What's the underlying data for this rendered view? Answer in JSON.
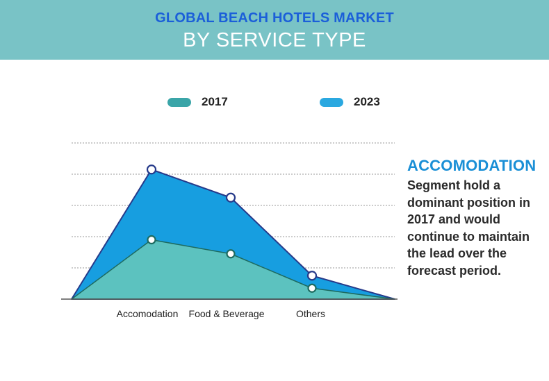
{
  "header": {
    "title": "GLOBAL BEACH HOTELS MARKET",
    "subtitle": "BY SERVICE TYPE"
  },
  "colors": {
    "banner": "#79c3c6",
    "title": "#1b5fd9",
    "series_2017_fill": "#5cc2bf",
    "series_2017_swatch": "#3aa5a8",
    "series_2023_fill": "#179ee0",
    "series_2023_swatch": "#2aa8e0",
    "line_2017": "#1e6b60",
    "line_2023": "#263a8a",
    "grid": "#9a9a9a",
    "accent_heading": "#1a8fd6"
  },
  "chart_data": {
    "type": "area",
    "categories": [
      "Accomodation",
      "Food & Beverage",
      "Others"
    ],
    "series": [
      {
        "name": "2017",
        "values": [
          38,
          29,
          7
        ]
      },
      {
        "name": "2023",
        "values": [
          83,
          65,
          15
        ]
      }
    ],
    "ylim": [
      0,
      100
    ],
    "grid": true,
    "y_tick_labels": false,
    "legend_position": "top"
  },
  "side_note": {
    "heading": "ACCOMODATION",
    "text": "Segment hold a dominant position in 2017 and would continue to maintain the lead over the forecast period."
  }
}
